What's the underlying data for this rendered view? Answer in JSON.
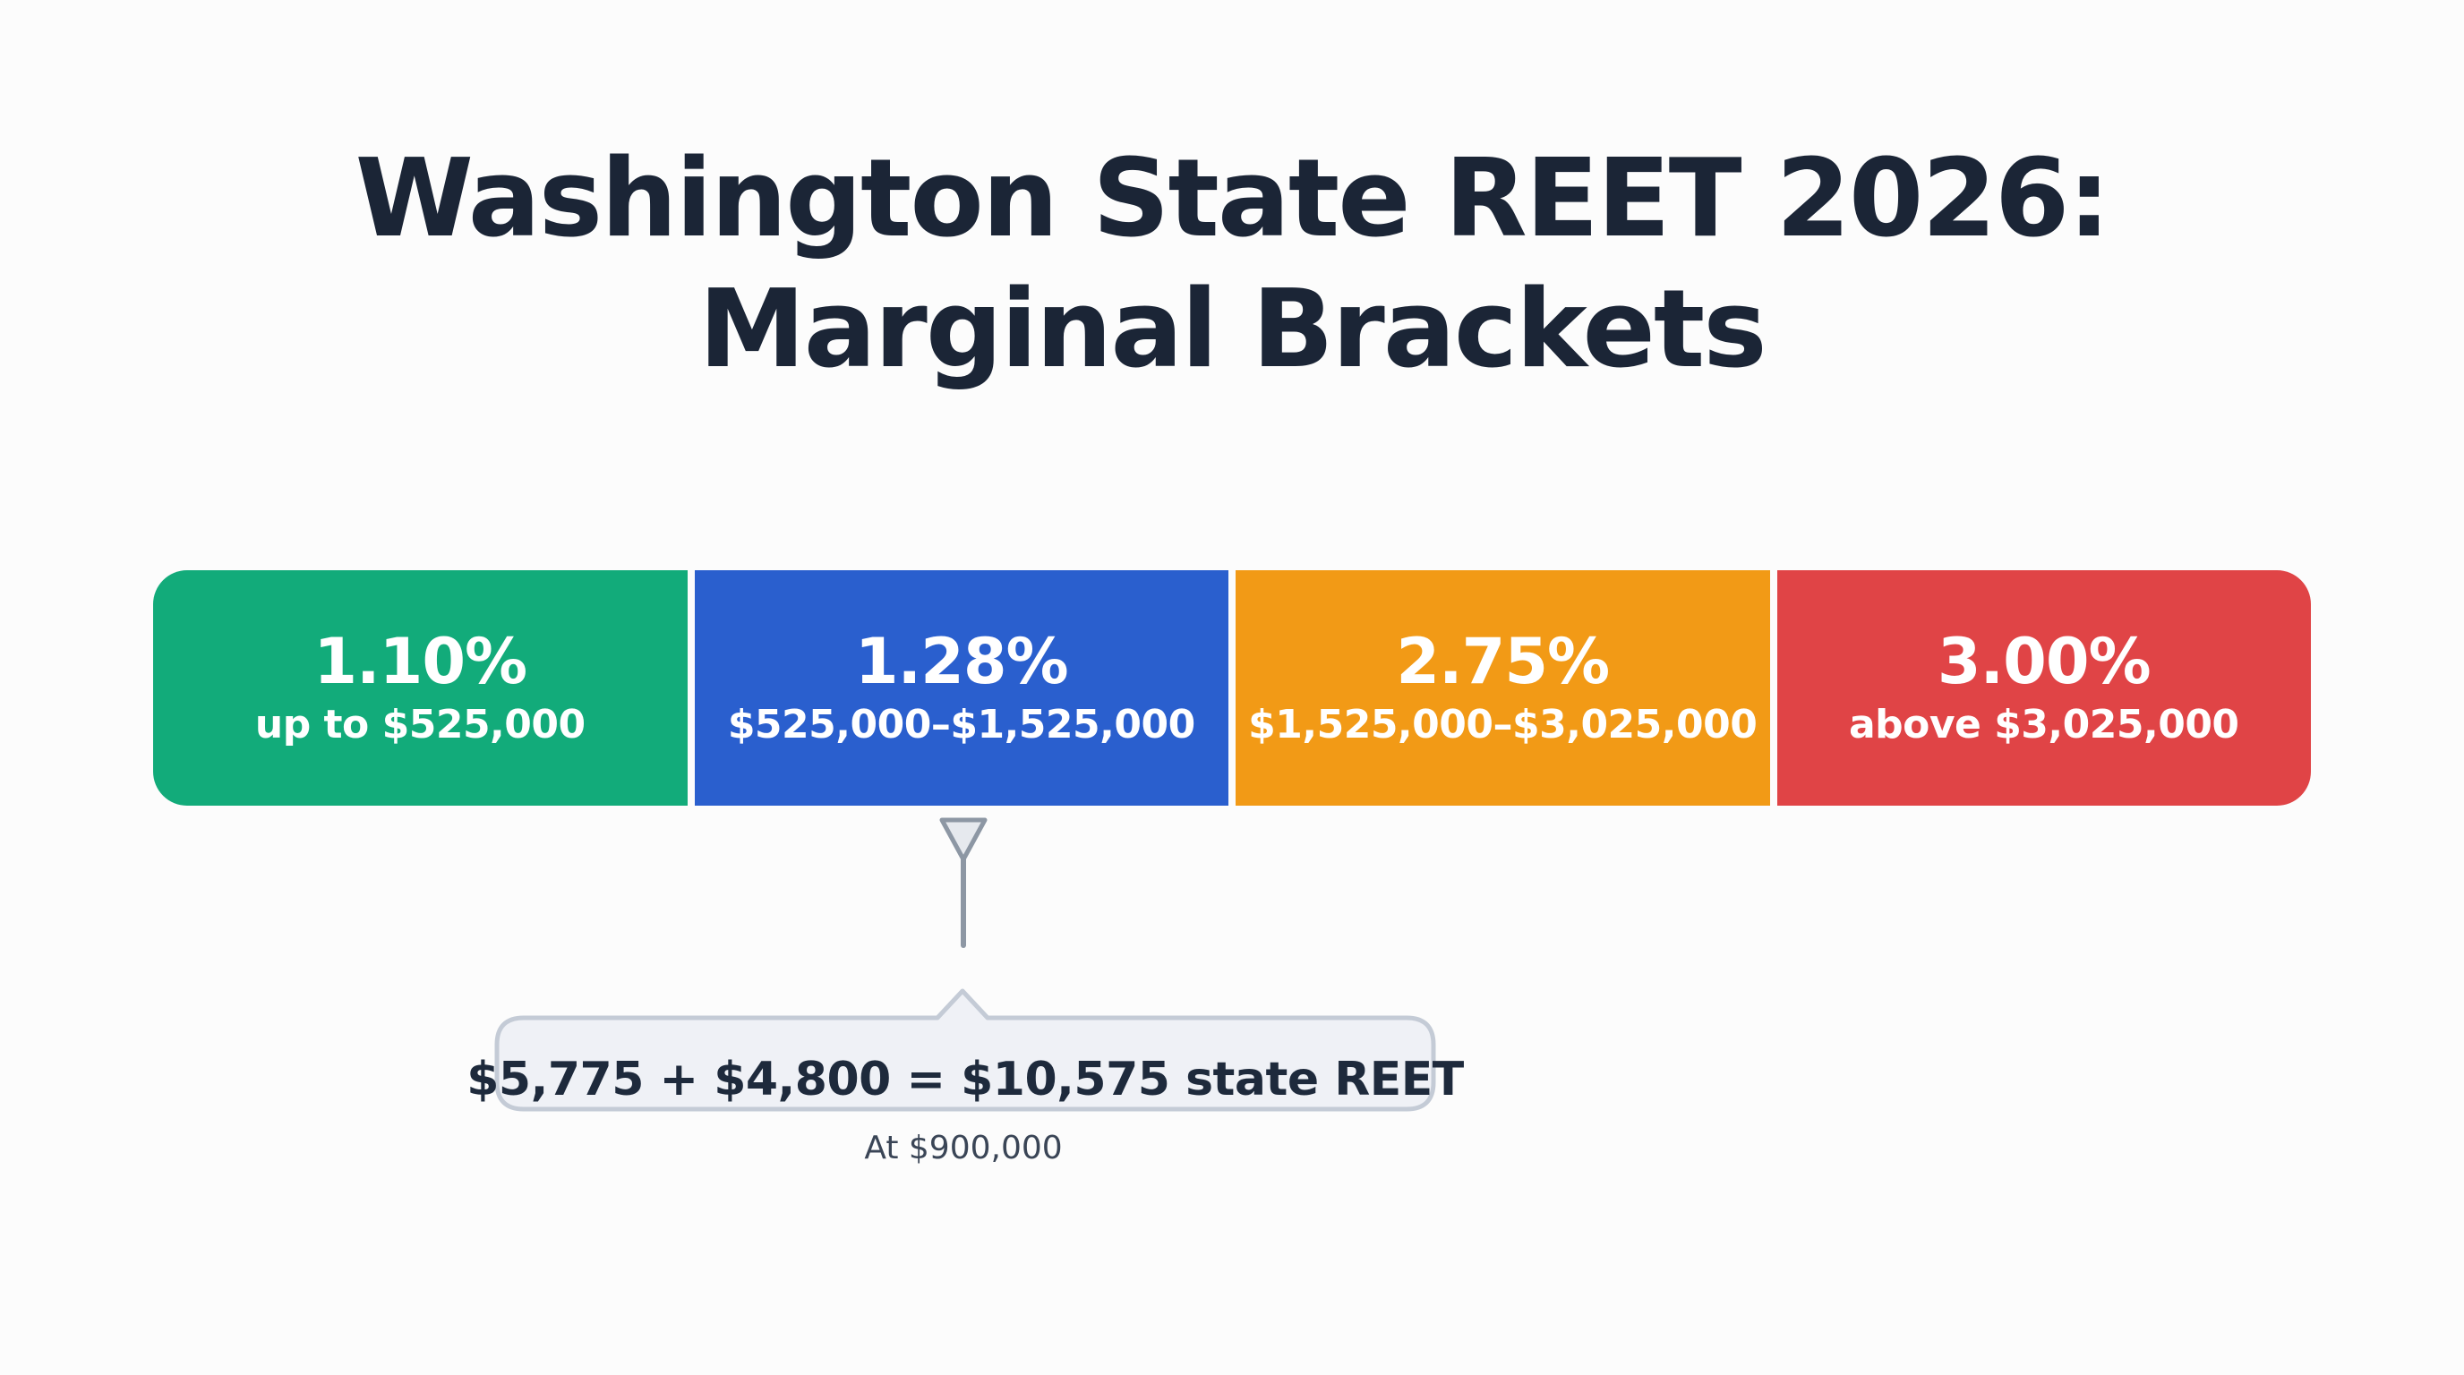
{
  "title_lines": [
    "Washington State REET 2026:",
    "Marginal Brackets"
  ],
  "brackets": [
    {
      "rate": "1.10%",
      "range": "up to $525,000",
      "color": "#12ab7a"
    },
    {
      "rate": "1.28%",
      "range": "$525,000–$1,525,000",
      "color": "#2a5fce"
    },
    {
      "rate": "2.75%",
      "range": "$1,525,000–$3,025,000",
      "color": "#f29a16"
    },
    {
      "rate": "3.00%",
      "range": "above $3,025,000",
      "color": "#e04446"
    }
  ],
  "pointer": {
    "color": "#8d97a4"
  },
  "callout": {
    "text": "$5,775 + $4,800 = $10,575 state REET",
    "caption": "At $900,000",
    "background": "#eff1f6",
    "border_color": "#c4cbd6"
  }
}
